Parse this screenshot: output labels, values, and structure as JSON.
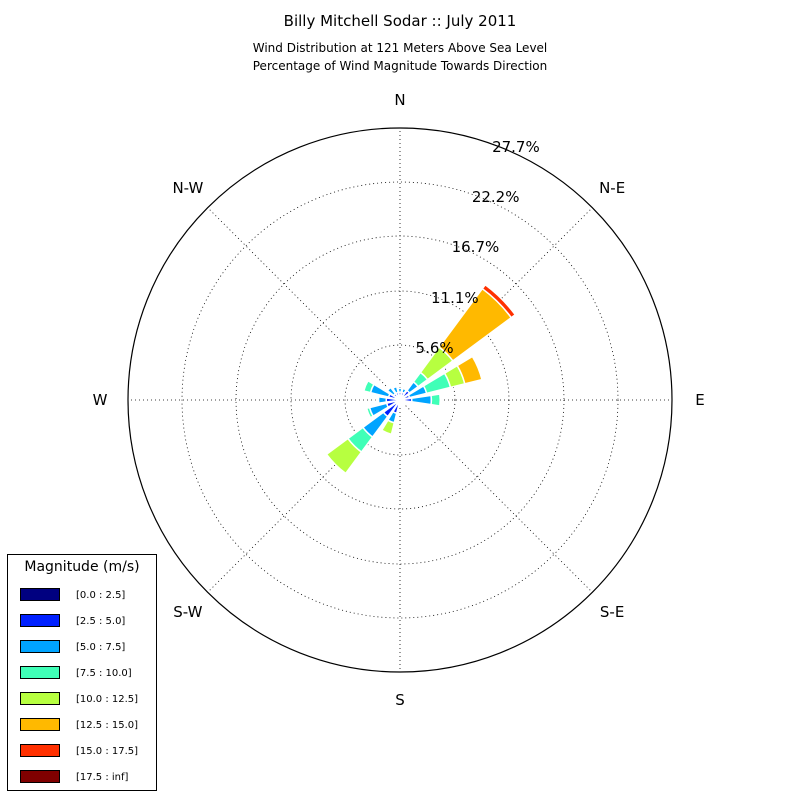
{
  "chart_data": {
    "type": "windrose",
    "title": "Billy Mitchell Sodar :: July 2011",
    "subtitle_lines": [
      "Wind Distribution at 121 Meters Above Sea Level",
      "Percentage of Wind Magnitude Towards Direction"
    ],
    "directions": [
      "E",
      "ENE",
      "NE",
      "NNE",
      "N",
      "NNW",
      "NW",
      "WNW",
      "W",
      "WSW",
      "SW",
      "SSW",
      "S",
      "SSE",
      "SE",
      "ESE"
    ],
    "direction_angles_deg": [
      0,
      22.5,
      45,
      67.5,
      90,
      112.5,
      135,
      157.5,
      180,
      202.5,
      225,
      247.5,
      270,
      292.5,
      315,
      337.5
    ],
    "compass_labels": [
      "E",
      "N-E",
      "N",
      "N-W",
      "W",
      "S-W",
      "S",
      "S-E"
    ],
    "radial_ticks": [
      "5.6%",
      "11.1%",
      "16.7%",
      "22.2%",
      "27.7%"
    ],
    "radial_tick_values": [
      5.6,
      11.1,
      16.7,
      22.2,
      27.7
    ],
    "radial_max": 27.7,
    "legend_title": "Magnitude (m/s)",
    "series": [
      {
        "name": "[0.0 : 2.5]",
        "color": "#000080",
        "values": [
          0.3,
          0.2,
          0.3,
          0.2,
          0.3,
          0.2,
          0.3,
          0.3,
          0.3,
          0.3,
          0.4,
          0.3,
          0.2,
          0.1,
          0.2,
          0.2
        ]
      },
      {
        "name": "[2.5 : 5.0]",
        "color": "#0020ff",
        "values": [
          0.9,
          0.8,
          0.9,
          0.6,
          0.5,
          0.6,
          0.5,
          0.9,
          1.1,
          1.1,
          1.7,
          1.1,
          0.4,
          0.3,
          0.4,
          0.4
        ]
      },
      {
        "name": "[5.0 : 7.5]",
        "color": "#00a4ff",
        "values": [
          2.0,
          1.8,
          1.1,
          0.4,
          0.4,
          0.6,
          0.8,
          1.9,
          0.8,
          1.8,
          2.6,
          1.0,
          0,
          0,
          0,
          0
        ]
      },
      {
        "name": "[7.5 : 10.0]",
        "color": "#40ffb7",
        "values": [
          0.9,
          2.5,
          1.2,
          0,
          0,
          0,
          0.1,
          0.7,
          0.1,
          0.3,
          1.9,
          0,
          0,
          0,
          0,
          0
        ]
      },
      {
        "name": "[10.0 : 12.5]",
        "color": "#b7ff40",
        "values": [
          0,
          1.5,
          3.2,
          0,
          0,
          0,
          0,
          0,
          0.1,
          0,
          2.7,
          1.2,
          0,
          0,
          0,
          0
        ]
      },
      {
        "name": "[12.5 : 15.0]",
        "color": "#ffb900",
        "values": [
          0,
          1.8,
          7.4,
          0,
          0,
          0,
          0,
          0,
          0,
          0,
          0,
          0,
          0,
          0,
          0,
          0
        ]
      },
      {
        "name": "[15.0 : 17.5]",
        "color": "#ff3000",
        "values": [
          0,
          0,
          0.5,
          0,
          0,
          0,
          0,
          0,
          0,
          0,
          0,
          0,
          0,
          0,
          0,
          0
        ]
      },
      {
        "name": "[17.5 : inf]",
        "color": "#800000",
        "values": [
          0,
          0,
          0,
          0,
          0,
          0,
          0,
          0,
          0,
          0,
          0,
          0,
          0,
          0,
          0,
          0
        ]
      }
    ]
  }
}
